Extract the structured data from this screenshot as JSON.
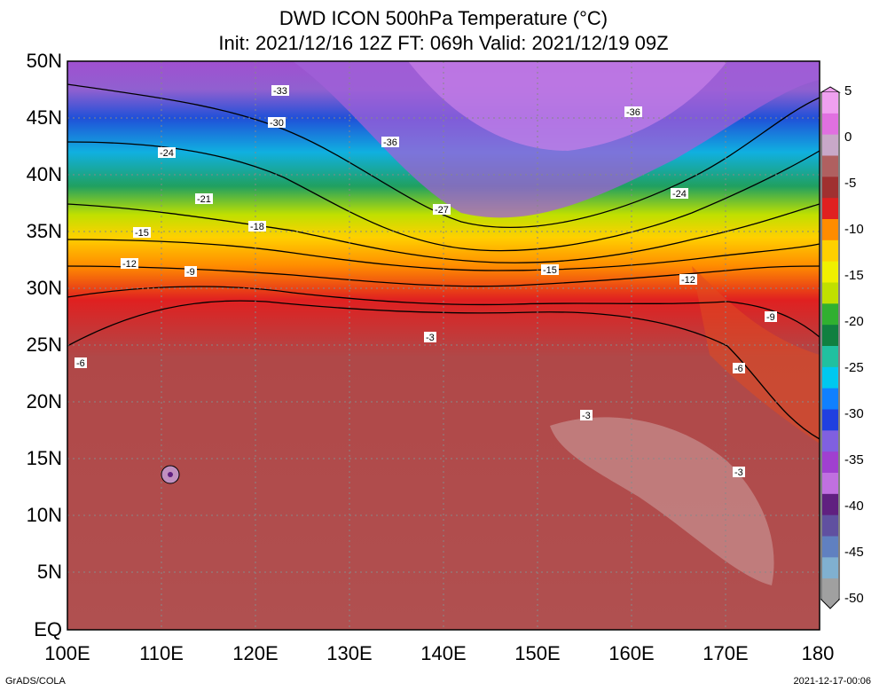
{
  "title": {
    "line1": "DWD ICON 500hPa Temperature (°C)",
    "line2": "Init: 2021/12/16 12Z  FT: 069h  Valid: 2021/12/19 09Z"
  },
  "footer": {
    "left": "GrADS/COLA",
    "right": "2021-12-17-00:06"
  },
  "lat_labels": [
    "50N",
    "45N",
    "40N",
    "35N",
    "30N",
    "25N",
    "20N",
    "15N",
    "10N",
    "5N",
    "EQ"
  ],
  "lon_labels": [
    "100E",
    "110E",
    "120E",
    "130E",
    "140E",
    "150E",
    "160E",
    "170E",
    "180"
  ],
  "colorbar": {
    "ticks": [
      "5",
      "0",
      "-5",
      "-10",
      "-15",
      "-20",
      "-25",
      "-30",
      "-35",
      "-40",
      "-45",
      "-50"
    ],
    "colors": [
      "#f0a0f0",
      "#e070e0",
      "#c8a8c8",
      "#b06060",
      "#a03030",
      "#e02020",
      "#ff8c00",
      "#ffd000",
      "#f0f000",
      "#c0e000",
      "#30b030",
      "#108040",
      "#20c0a0",
      "#00c8f0",
      "#1080ff",
      "#2040e0",
      "#8060e0",
      "#a040d0",
      "#c070e0",
      "#602080",
      "#6050a0",
      "#6080c0",
      "#80b0d0",
      "#a0a0a0"
    ]
  },
  "contour_labels": [
    "-33",
    "-36",
    "-30",
    "-27",
    "-24",
    "-21",
    "-18",
    "-15",
    "-12",
    "-9",
    "-6",
    "-3"
  ],
  "region": {
    "lon_range": [
      100,
      180
    ],
    "lat_range": [
      0,
      50
    ]
  }
}
